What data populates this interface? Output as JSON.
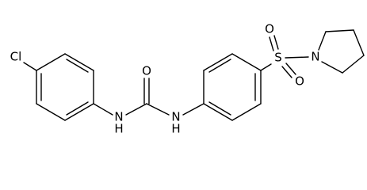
{
  "atoms": [
    {
      "label": "Cl"
    },
    {
      "label": "N"
    },
    {
      "label": "H"
    },
    {
      "label": "O"
    },
    {
      "label": "N"
    },
    {
      "label": "H"
    },
    {
      "label": "S"
    },
    {
      "label": "O"
    },
    {
      "label": "O"
    },
    {
      "label": "N"
    }
  ]
}
